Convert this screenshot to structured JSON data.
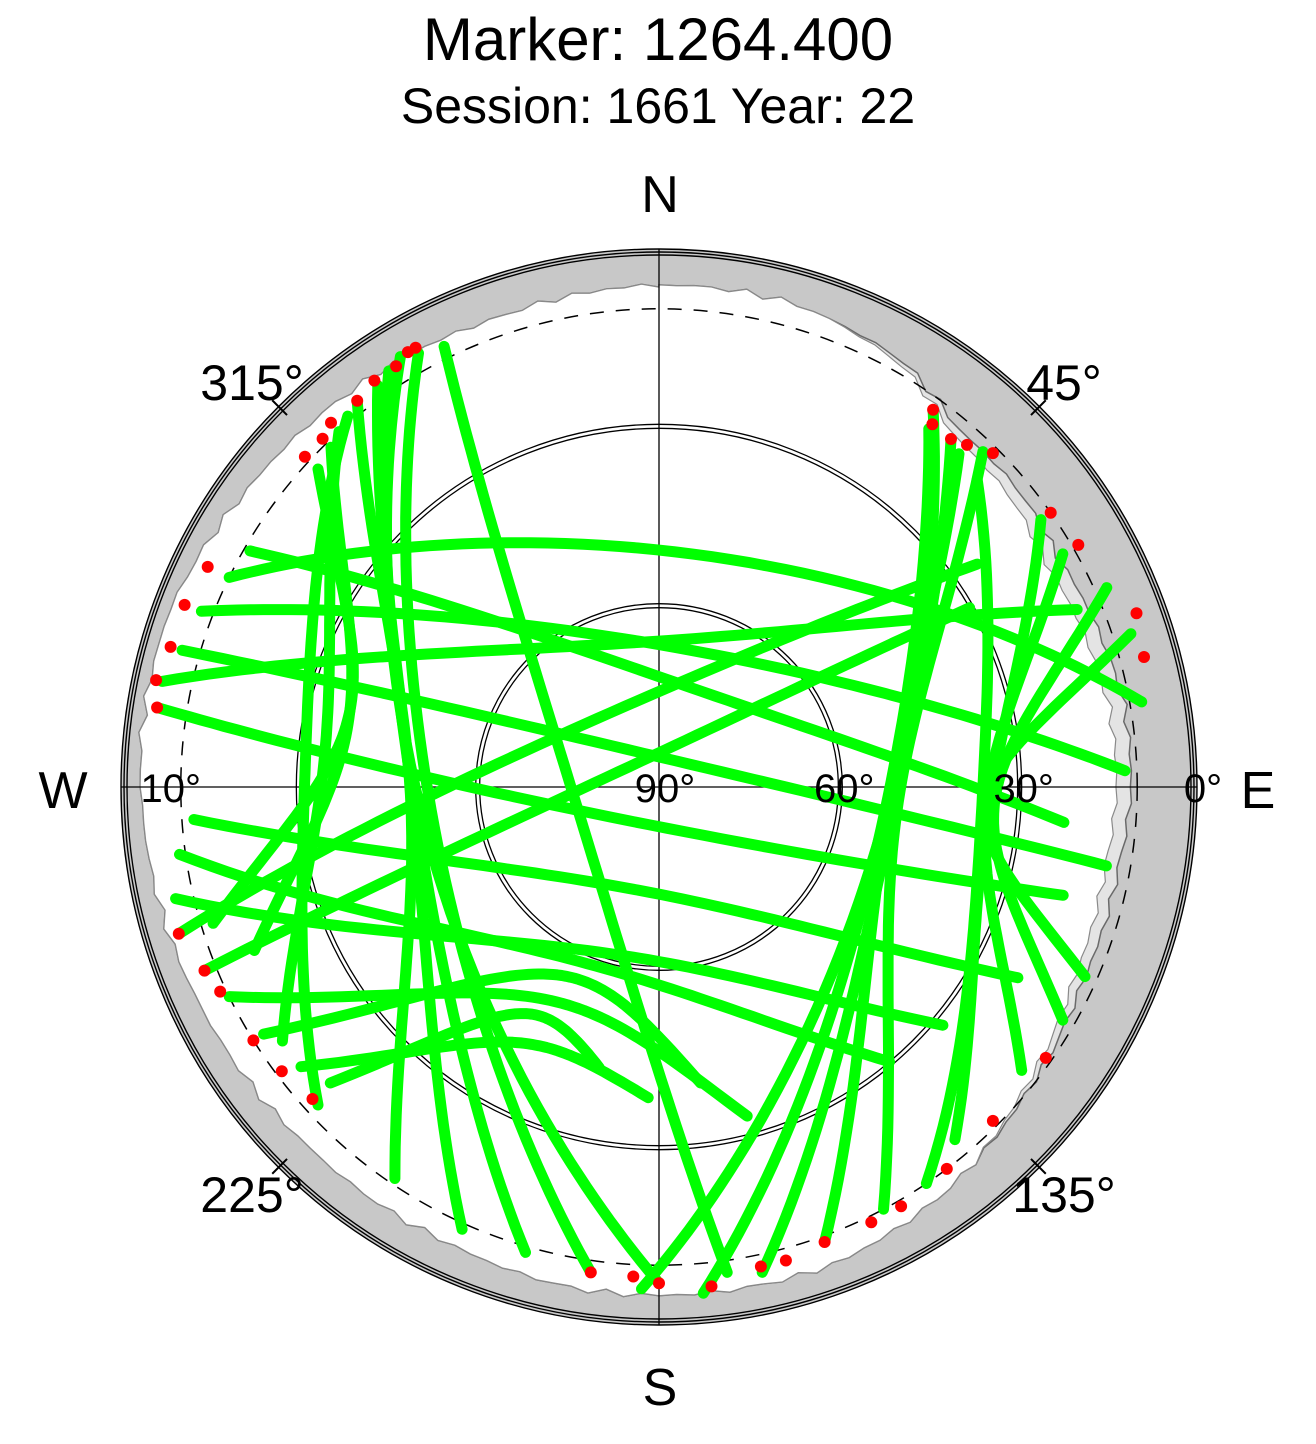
{
  "chart_data": {
    "type": "scatter",
    "projection": "polar skyplot (azimuth clockwise from north, elevation 90 at center, 0 at rim)",
    "title": "Marker: 1264.400",
    "subtitle": "Session: 1661 Year: 22",
    "compass_labels": {
      "north": "N",
      "east": "E",
      "south": "S",
      "west": "W"
    },
    "azimuth_labels": [
      {
        "az": 45,
        "label": "45°"
      },
      {
        "az": 135,
        "label": "135°"
      },
      {
        "az": 225,
        "label": "225°"
      },
      {
        "az": 315,
        "label": "315°"
      }
    ],
    "elevation_labels": [
      {
        "el": 90,
        "label": "90°"
      },
      {
        "el": 60,
        "label": "60°"
      },
      {
        "el": 30,
        "label": "30°"
      },
      {
        "el": 0,
        "label": "0°"
      },
      {
        "el": 10,
        "label": "10°"
      }
    ],
    "elevation_circles": [
      60,
      30
    ],
    "cutoff_elevation_dashed": 10,
    "grid": true,
    "colors": {
      "track": "#00ff00",
      "low_point": "#ff0000",
      "mask_outer": "#c8c8c8",
      "mask_inner": "#e4e4e4",
      "axes": "#000000"
    },
    "series": [
      {
        "color": "#00ff00",
        "role": "observed track"
      },
      {
        "color": "#ff0000",
        "role": "low elevation end"
      }
    ],
    "tracks": [
      {
        "start": [
          329,
          6
        ],
        "end": [
          180,
          7
        ]
      },
      {
        "start": [
          331,
          7
        ],
        "end": [
          188,
          8
        ]
      },
      {
        "start": [
          327,
          7
        ],
        "end": [
          196,
          9
        ]
      },
      {
        "start": [
          325,
          8
        ],
        "end": [
          204,
          9
        ]
      },
      {
        "start": [
          322,
          8
        ],
        "end": [
          214,
          11
        ]
      },
      {
        "start": [
          320,
          9
        ],
        "end": [
          227,
          12
        ]
      },
      {
        "start": [
          318,
          10
        ],
        "end": [
          236,
          14
        ]
      },
      {
        "start": [
          316,
          11
        ],
        "end": [
          248,
          17
        ]
      },
      {
        "start": [
          313,
          12
        ],
        "end": [
          253,
          12
        ]
      },
      {
        "start": [
          334,
          8
        ],
        "end": [
          172,
          8
        ]
      },
      {
        "start": [
          36,
          12
        ],
        "end": [
          182,
          6
        ]
      },
      {
        "start": [
          37,
          15
        ],
        "end": [
          175,
          5
        ]
      },
      {
        "start": [
          40,
          14
        ],
        "end": [
          168,
          7
        ]
      },
      {
        "start": [
          42,
          15
        ],
        "end": [
          160,
          9
        ]
      },
      {
        "start": [
          44,
          12
        ],
        "end": [
          152,
          10
        ]
      },
      {
        "start": [
          46,
          16
        ],
        "end": [
          146,
          10
        ]
      },
      {
        "start": [
          55,
          12
        ],
        "end": [
          140,
          13
        ]
      },
      {
        "start": [
          60,
          12
        ],
        "end": [
          128,
          13
        ]
      },
      {
        "start": [
          66,
          8
        ],
        "end": [
          120,
          12
        ]
      },
      {
        "start": [
          72,
          7
        ],
        "end": [
          114,
          12
        ]
      },
      {
        "start": [
          296,
          10
        ],
        "end": [
          80,
          8
        ]
      },
      {
        "start": [
          291,
          8
        ],
        "end": [
          88,
          12
        ]
      },
      {
        "start": [
          300,
          11
        ],
        "end": [
          95,
          22
        ]
      },
      {
        "start": [
          286,
          7
        ],
        "end": [
          100,
          14
        ]
      },
      {
        "start": [
          282,
          5
        ],
        "end": [
          67,
          14
        ]
      },
      {
        "start": [
          279,
          5
        ],
        "end": [
          105,
          20
        ]
      },
      {
        "start": [
          253,
          6
        ],
        "end": [
          55,
          25
        ]
      },
      {
        "start": [
          248,
          8
        ],
        "end": [
          60,
          30
        ]
      },
      {
        "start": [
          244,
          10
        ],
        "end": [
          165,
          33
        ]
      },
      {
        "start": [
          238,
          12
        ],
        "end": [
          172,
          40
        ]
      },
      {
        "start": [
          232,
          14
        ],
        "end": [
          182,
          38
        ]
      },
      {
        "start": [
          228,
          16
        ],
        "end": [
          192,
          42
        ]
      },
      {
        "start": [
          262,
          9
        ],
        "end": [
          140,
          30
        ]
      },
      {
        "start": [
          257,
          7
        ],
        "end": [
          130,
          28
        ]
      },
      {
        "start": [
          266,
          12
        ],
        "end": [
          118,
          22
        ]
      }
    ],
    "red_points_sample": [
      [
        331,
        6
      ],
      [
        330,
        6
      ],
      [
        328,
        7
      ],
      [
        325,
        7
      ],
      [
        322,
        8
      ],
      [
        318,
        8
      ],
      [
        316,
        9
      ],
      [
        313,
        9
      ],
      [
        36,
        12
      ],
      [
        37,
        14
      ],
      [
        40,
        14
      ],
      [
        42,
        13
      ],
      [
        45,
        11
      ],
      [
        55,
        10
      ],
      [
        60,
        9
      ],
      [
        70,
        5
      ],
      [
        75,
        6
      ],
      [
        296,
        6
      ],
      [
        291,
        5
      ],
      [
        286,
        5
      ],
      [
        282,
        4
      ],
      [
        279,
        5
      ],
      [
        253,
        6
      ],
      [
        248,
        8
      ],
      [
        245,
        9
      ],
      [
        238,
        10
      ],
      [
        233,
        11
      ],
      [
        228,
        12
      ],
      [
        188,
        8
      ],
      [
        183,
        8
      ],
      [
        180,
        7
      ],
      [
        174,
        6
      ],
      [
        168,
        8
      ],
      [
        165,
        8
      ],
      [
        160,
        9
      ],
      [
        154,
        9
      ],
      [
        150,
        9
      ],
      [
        143,
        10
      ],
      [
        135,
        11
      ],
      [
        125,
        11
      ]
    ],
    "mask_profile": [
      [
        0,
        6
      ],
      [
        15,
        6
      ],
      [
        30,
        8
      ],
      [
        40,
        12
      ],
      [
        50,
        12
      ],
      [
        60,
        13
      ],
      [
        70,
        12
      ],
      [
        80,
        11
      ],
      [
        90,
        11
      ],
      [
        100,
        12
      ],
      [
        115,
        12
      ],
      [
        130,
        10
      ],
      [
        145,
        7
      ],
      [
        160,
        5
      ],
      [
        175,
        5
      ],
      [
        190,
        5
      ],
      [
        205,
        6
      ],
      [
        225,
        6
      ],
      [
        245,
        5
      ],
      [
        260,
        4
      ],
      [
        275,
        3
      ],
      [
        290,
        3
      ],
      [
        305,
        5
      ],
      [
        320,
        6
      ],
      [
        340,
        7
      ],
      [
        360,
        6
      ]
    ]
  }
}
